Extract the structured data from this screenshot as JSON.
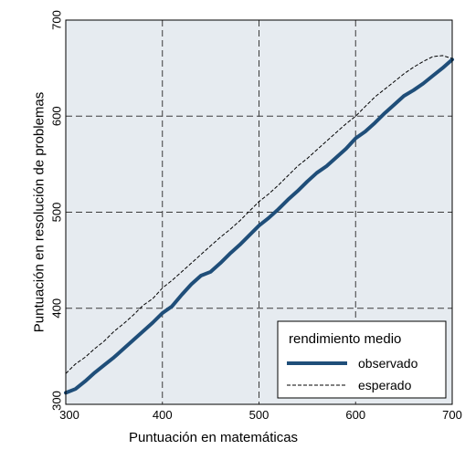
{
  "chart_data": {
    "type": "line",
    "title": "",
    "xlabel": "Puntuación en matemáticas",
    "ylabel": "Puntuación en resolución de problemas",
    "xlim": [
      300,
      700
    ],
    "ylim": [
      300,
      700
    ],
    "x_ticks": [
      300,
      400,
      500,
      600,
      700
    ],
    "y_ticks": [
      300,
      400,
      500,
      600,
      700
    ],
    "x_tick_labels": [
      "300",
      "400",
      "500",
      "600",
      "700"
    ],
    "y_tick_labels": [
      "300",
      "400",
      "500",
      "600",
      "700"
    ],
    "grid": true,
    "grid_style": "dashed",
    "background": "#e6ebf0",
    "legend": {
      "title": "rendimiento medio",
      "placement": "bottom-right"
    },
    "series": [
      {
        "name": "observado",
        "color": "#1f4e79",
        "style": "solid-thick",
        "x": [
          300,
          310,
          320,
          330,
          340,
          350,
          360,
          370,
          380,
          390,
          400,
          410,
          420,
          430,
          440,
          450,
          460,
          470,
          480,
          490,
          500,
          510,
          520,
          530,
          540,
          550,
          560,
          570,
          580,
          590,
          600,
          610,
          620,
          630,
          640,
          650,
          660,
          670,
          680,
          690,
          700
        ],
        "y": [
          312,
          316,
          324,
          333,
          341,
          349,
          358,
          367,
          376,
          385,
          395,
          402,
          414,
          425,
          434,
          438,
          447,
          457,
          466,
          476,
          486,
          494,
          503,
          513,
          522,
          532,
          541,
          548,
          557,
          566,
          577,
          584,
          593,
          603,
          612,
          621,
          627,
          634,
          642,
          650,
          659
        ]
      },
      {
        "name": "esperado",
        "color": "#000000",
        "style": "dashed-thin",
        "x": [
          300,
          310,
          320,
          330,
          340,
          350,
          360,
          370,
          380,
          390,
          400,
          410,
          420,
          430,
          440,
          450,
          460,
          470,
          480,
          490,
          500,
          510,
          520,
          530,
          540,
          550,
          560,
          570,
          580,
          590,
          600,
          610,
          620,
          630,
          640,
          650,
          660,
          670,
          680,
          690,
          700
        ],
        "y": [
          332,
          342,
          349,
          358,
          366,
          376,
          384,
          393,
          403,
          410,
          421,
          429,
          438,
          447,
          456,
          465,
          474,
          482,
          491,
          501,
          511,
          519,
          528,
          538,
          548,
          556,
          565,
          574,
          583,
          592,
          600,
          610,
          620,
          628,
          636,
          644,
          651,
          657,
          662,
          663,
          660
        ]
      }
    ]
  }
}
